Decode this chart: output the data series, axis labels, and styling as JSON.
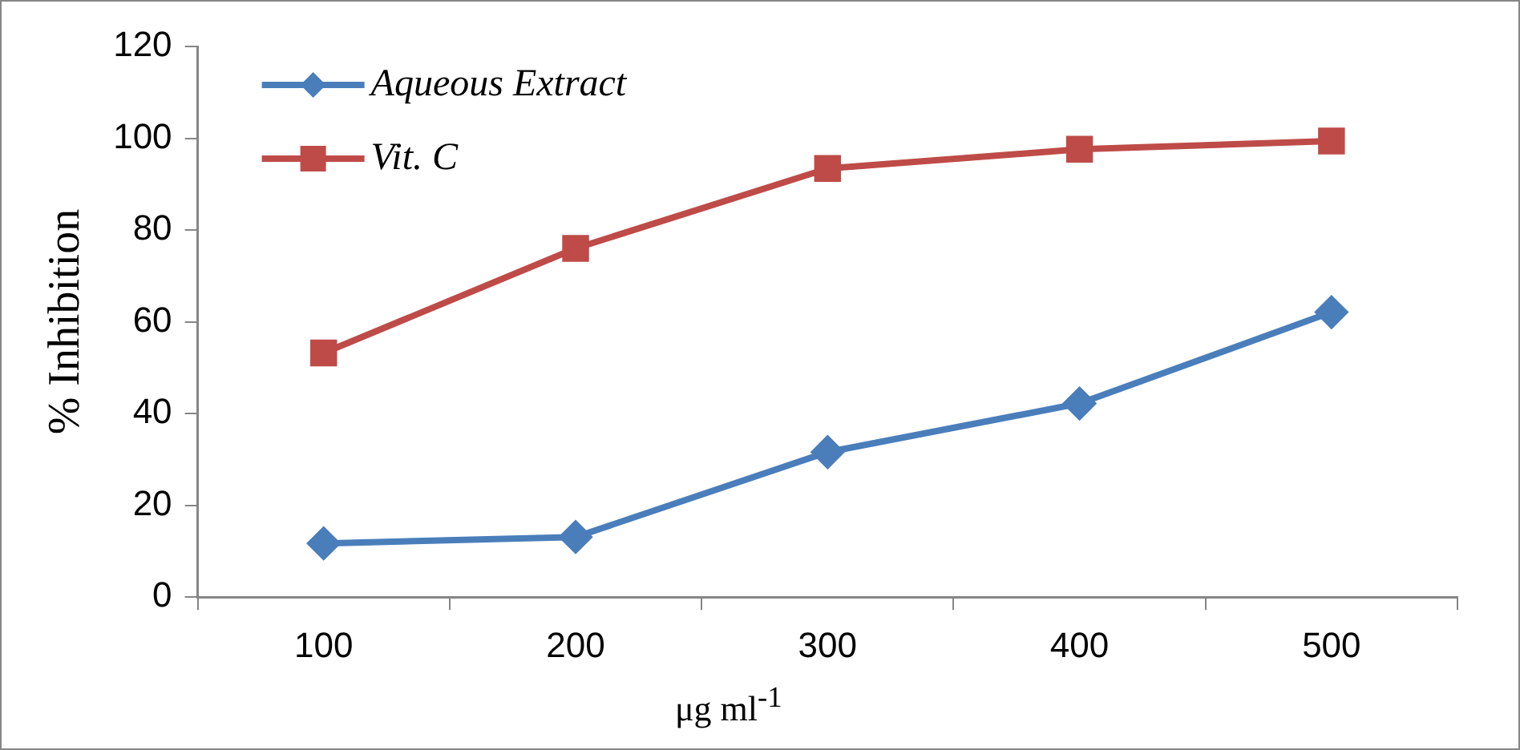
{
  "chart_data": {
    "type": "line",
    "ylabel": "% Inhibition",
    "xlabel": "μg ml$^{-1}$",
    "categories": [
      "100",
      "200",
      "300",
      "400",
      "500"
    ],
    "series": [
      {
        "name": "Aqueous Extract",
        "color": "#4a7ebb",
        "marker": "diamond",
        "values": [
          11.7,
          13.1,
          31.6,
          42.2,
          62.1
        ]
      },
      {
        "name": "Vit. C",
        "color": "#be4b48",
        "marker": "square",
        "values": [
          53.2,
          76,
          93.4,
          97.6,
          99.4
        ]
      }
    ],
    "ylim": [
      0,
      120
    ],
    "yticks": [
      0,
      20,
      40,
      60,
      80,
      100,
      120
    ],
    "grid": false,
    "legend": "top left",
    "line_style": "solid"
  }
}
